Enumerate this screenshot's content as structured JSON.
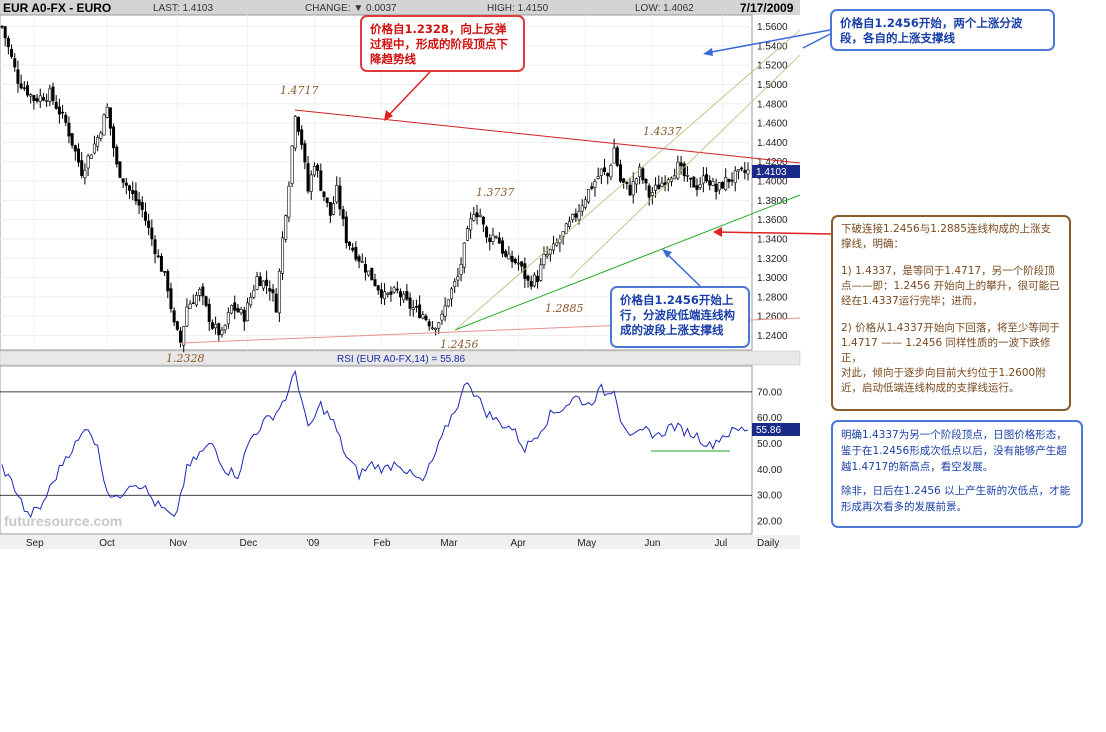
{
  "header": {
    "symbol": "EUR A0-FX - EURO",
    "last": "LAST: 1.4103",
    "change": "CHANGE: ▼ 0.0037",
    "high": "HIGH: 1.4150",
    "low": "LOW: 1.4062",
    "date": "7/17/2009"
  },
  "rsi_label": "RSI (EUR A0-FX,14) = 55.86",
  "watermark": "futuresource.com",
  "daily_label": "Daily",
  "price_tag": "1.4103",
  "rsi_tag": "55.86",
  "levels": {
    "l1": "1.4717",
    "l2": "1.3737",
    "l3": "1.4337",
    "l4": "1.2885",
    "l5": "1.2456",
    "l6": "1.2328"
  },
  "notes": {
    "top": "价格自1.2328，向上反弹过程中，形成的阶段顶点下降趋势线",
    "right_top": "价格自1.2456开始，两个上涨分波段，各自的上涨支撑线",
    "lower": "价格自1.2456开始上行，分波段低端连线构成的波段上涨支撑线",
    "brown": [
      "下破连接1.2456与1.2885连线构成的上涨支撑线，明确：",
      "1) 1.4337，是等同于1.4717，另一个阶段顶点——即：1.2456 开始向上的攀升，很可能已经在1.4337运行完毕；进而，",
      "2) 价格从1.4337开始向下回落，将至少等同于 1.4717 —— 1.2456 同样性质的一波下跌修正，",
      "对此，倾向于逐步向目前大约位于1.2600附近，启动低端连线构成的支撑线运行。"
    ],
    "blue_big": [
      "明确1.4337为另一个阶段顶点，日图价格形态，鉴于在1.2456形成次低点以后，没有能够产生超越1.4717的新高点，看空发展。",
      "除非，日后在1.2456 以上产生新的次低点，才能形成再次看多的发展前景。"
    ]
  },
  "chart_data": [
    {
      "type": "candlestick",
      "title": "EUR A0-FX - EURO",
      "period": "Daily",
      "x_ticks": [
        "Sep",
        "Oct",
        "Nov",
        "Dec",
        "'09",
        "Feb",
        "Mar",
        "Apr",
        "May",
        "Jun",
        "Jul"
      ],
      "y_ticks": [
        "1.5600",
        "1.5400",
        "1.5200",
        "1.5000",
        "1.4800",
        "1.4600",
        "1.4400",
        "1.4200",
        "1.4000",
        "1.3800",
        "1.3600",
        "1.3400",
        "1.3200",
        "1.3000",
        "1.2800",
        "1.2600",
        "1.2400"
      ],
      "ylim": [
        1.225,
        1.572
      ],
      "n_bars": 235,
      "anchors": [
        [
          0,
          1.56
        ],
        [
          5,
          1.505
        ],
        [
          10,
          1.485
        ],
        [
          15,
          1.49
        ],
        [
          20,
          1.46
        ],
        [
          25,
          1.41
        ],
        [
          30,
          1.445
        ],
        [
          33,
          1.475
        ],
        [
          36,
          1.415
        ],
        [
          40,
          1.39
        ],
        [
          44,
          1.37
        ],
        [
          48,
          1.33
        ],
        [
          52,
          1.29
        ],
        [
          54,
          1.25
        ],
        [
          56,
          1.233
        ],
        [
          58,
          1.27
        ],
        [
          62,
          1.285
        ],
        [
          66,
          1.25
        ],
        [
          69,
          1.24
        ],
        [
          72,
          1.27
        ],
        [
          76,
          1.26
        ],
        [
          80,
          1.3
        ],
        [
          84,
          1.29
        ],
        [
          86,
          1.27
        ],
        [
          88,
          1.34
        ],
        [
          90,
          1.4
        ],
        [
          92,
          1.472
        ],
        [
          94,
          1.44
        ],
        [
          96,
          1.39
        ],
        [
          98,
          1.42
        ],
        [
          100,
          1.395
        ],
        [
          103,
          1.365
        ],
        [
          105,
          1.39
        ],
        [
          108,
          1.34
        ],
        [
          112,
          1.32
        ],
        [
          116,
          1.3
        ],
        [
          120,
          1.28
        ],
        [
          124,
          1.285
        ],
        [
          128,
          1.27
        ],
        [
          132,
          1.262
        ],
        [
          135,
          1.25
        ],
        [
          138,
          1.258
        ],
        [
          140,
          1.28
        ],
        [
          143,
          1.3
        ],
        [
          146,
          1.345
        ],
        [
          148,
          1.37
        ],
        [
          150,
          1.365
        ],
        [
          152,
          1.34
        ],
        [
          155,
          1.345
        ],
        [
          158,
          1.32
        ],
        [
          162,
          1.315
        ],
        [
          165,
          1.295
        ],
        [
          168,
          1.3
        ],
        [
          170,
          1.32
        ],
        [
          173,
          1.33
        ],
        [
          176,
          1.345
        ],
        [
          180,
          1.365
        ],
        [
          184,
          1.39
        ],
        [
          188,
          1.41
        ],
        [
          190,
          1.405
        ],
        [
          192,
          1.434
        ],
        [
          194,
          1.4
        ],
        [
          197,
          1.39
        ],
        [
          200,
          1.41
        ],
        [
          203,
          1.385
        ],
        [
          206,
          1.395
        ],
        [
          209,
          1.405
        ],
        [
          212,
          1.415
        ],
        [
          215,
          1.4
        ],
        [
          218,
          1.395
        ],
        [
          221,
          1.405
        ],
        [
          224,
          1.39
        ],
        [
          227,
          1.4
        ],
        [
          230,
          1.405
        ],
        [
          234,
          1.41
        ]
      ],
      "last": 1.4103
    },
    {
      "type": "line",
      "title": "RSI (EUR A0-FX,14) = 55.86",
      "y_ticks": [
        "70.00",
        "60.00",
        "50.00",
        "40.00",
        "30.00",
        "20.00"
      ],
      "ylim": [
        15,
        80
      ],
      "reference_lines": [
        70,
        30
      ],
      "anchors": [
        [
          0,
          41
        ],
        [
          4,
          33
        ],
        [
          8,
          22
        ],
        [
          12,
          25
        ],
        [
          16,
          35
        ],
        [
          20,
          45
        ],
        [
          24,
          51
        ],
        [
          27,
          57
        ],
        [
          30,
          48
        ],
        [
          33,
          32
        ],
        [
          36,
          28
        ],
        [
          40,
          35
        ],
        [
          44,
          34
        ],
        [
          48,
          27
        ],
        [
          52,
          23
        ],
        [
          54,
          20
        ],
        [
          58,
          40
        ],
        [
          62,
          46
        ],
        [
          66,
          50
        ],
        [
          70,
          40
        ],
        [
          74,
          38
        ],
        [
          78,
          52
        ],
        [
          82,
          58
        ],
        [
          86,
          62
        ],
        [
          90,
          70
        ],
        [
          92,
          78
        ],
        [
          94,
          67
        ],
        [
          96,
          55
        ],
        [
          100,
          65
        ],
        [
          104,
          58
        ],
        [
          108,
          45
        ],
        [
          112,
          38
        ],
        [
          116,
          42
        ],
        [
          120,
          40
        ],
        [
          124,
          43
        ],
        [
          128,
          38
        ],
        [
          132,
          35
        ],
        [
          136,
          46
        ],
        [
          140,
          58
        ],
        [
          144,
          68
        ],
        [
          146,
          75
        ],
        [
          148,
          70
        ],
        [
          152,
          62
        ],
        [
          156,
          58
        ],
        [
          160,
          56
        ],
        [
          164,
          48
        ],
        [
          168,
          54
        ],
        [
          172,
          61
        ],
        [
          176,
          64
        ],
        [
          180,
          68
        ],
        [
          184,
          65
        ],
        [
          188,
          71
        ],
        [
          190,
          69
        ],
        [
          192,
          72
        ],
        [
          194,
          60
        ],
        [
          198,
          52
        ],
        [
          202,
          55
        ],
        [
          206,
          53
        ],
        [
          210,
          57
        ],
        [
          214,
          55
        ],
        [
          218,
          53
        ],
        [
          222,
          49
        ],
        [
          226,
          53
        ],
        [
          230,
          55
        ],
        [
          234,
          55.86
        ]
      ],
      "last": 55.86
    }
  ]
}
